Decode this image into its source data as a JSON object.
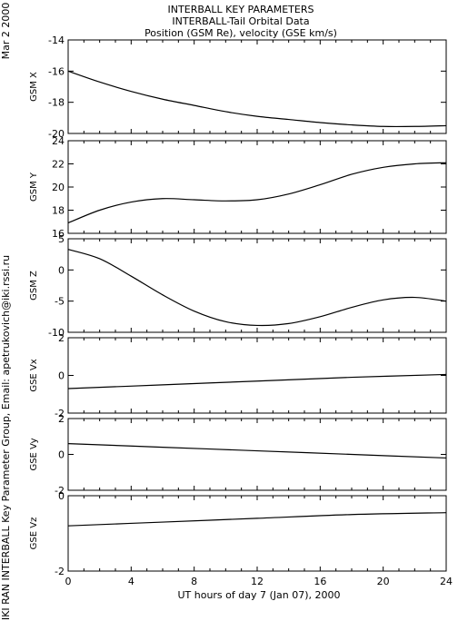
{
  "side_date": "Mar  2 2000",
  "side_credit": "IKI RAN INTERBALL Key Parameter Group, Email: apetrukovich@iki.rssi.ru",
  "chart_data": {
    "type": "line",
    "title": [
      "INTERBALL KEY PARAMETERS",
      "INTERBALL-Tail Orbital Data",
      "Position (GSM Re), velocity (GSE km/s)"
    ],
    "xlabel": "UT hours of day   7 (Jan 07), 2000",
    "xlim": [
      0,
      24
    ],
    "xticks": [
      0,
      4,
      8,
      12,
      16,
      20,
      24
    ],
    "panels": [
      {
        "ylabel": "GSM X",
        "ylim": [
          -20,
          -14
        ],
        "yticks": [
          -20,
          -18,
          -16,
          -14
        ],
        "series": [
          {
            "x": [
              0,
              2,
              4,
              6,
              8,
              10,
              12,
              14,
              16,
              18,
              20,
              22,
              24
            ],
            "y": [
              -16.0,
              -16.7,
              -17.3,
              -17.8,
              -18.2,
              -18.6,
              -18.9,
              -19.1,
              -19.3,
              -19.45,
              -19.55,
              -19.55,
              -19.5
            ]
          }
        ]
      },
      {
        "ylabel": "GSM Y",
        "ylim": [
          16,
          24
        ],
        "yticks": [
          16,
          18,
          20,
          22,
          24
        ],
        "series": [
          {
            "x": [
              0,
              2,
              4,
              6,
              8,
              10,
              12,
              14,
              16,
              18,
              20,
              22,
              24
            ],
            "y": [
              16.9,
              18.0,
              18.7,
              19.0,
              18.9,
              18.8,
              18.9,
              19.4,
              20.2,
              21.1,
              21.7,
              22.0,
              22.1
            ]
          }
        ]
      },
      {
        "ylabel": "GSM Z",
        "ylim": [
          -10,
          5
        ],
        "yticks": [
          -10,
          -5,
          0,
          5
        ],
        "series": [
          {
            "x": [
              0,
              2,
              4,
              6,
              8,
              10,
              12,
              14,
              16,
              18,
              20,
              22,
              24
            ],
            "y": [
              3.3,
              1.8,
              -1.0,
              -4.0,
              -6.6,
              -8.3,
              -8.9,
              -8.6,
              -7.5,
              -6.0,
              -4.8,
              -4.4,
              -5.0
            ]
          }
        ]
      },
      {
        "ylabel": "GSE Vx",
        "ylim": [
          -2,
          2
        ],
        "yticks": [
          -2,
          0,
          2
        ],
        "series": [
          {
            "x": [
              0,
              6,
              12,
              18,
              24
            ],
            "y": [
              -0.7,
              -0.5,
              -0.3,
              -0.1,
              0.05
            ]
          }
        ]
      },
      {
        "ylabel": "GSE Vy",
        "ylim": [
          -2,
          2
        ],
        "yticks": [
          -2,
          0,
          2
        ],
        "series": [
          {
            "x": [
              0,
              6,
              12,
              18,
              24
            ],
            "y": [
              0.6,
              0.4,
              0.2,
              0.0,
              -0.2
            ]
          }
        ]
      },
      {
        "ylabel": "GSE Vz",
        "ylim": [
          -2,
          0
        ],
        "yticks": [
          -2,
          0
        ],
        "series": [
          {
            "x": [
              0,
              6,
              12,
              18,
              24
            ],
            "y": [
              -0.8,
              -0.7,
              -0.6,
              -0.5,
              -0.45
            ]
          }
        ]
      }
    ]
  }
}
